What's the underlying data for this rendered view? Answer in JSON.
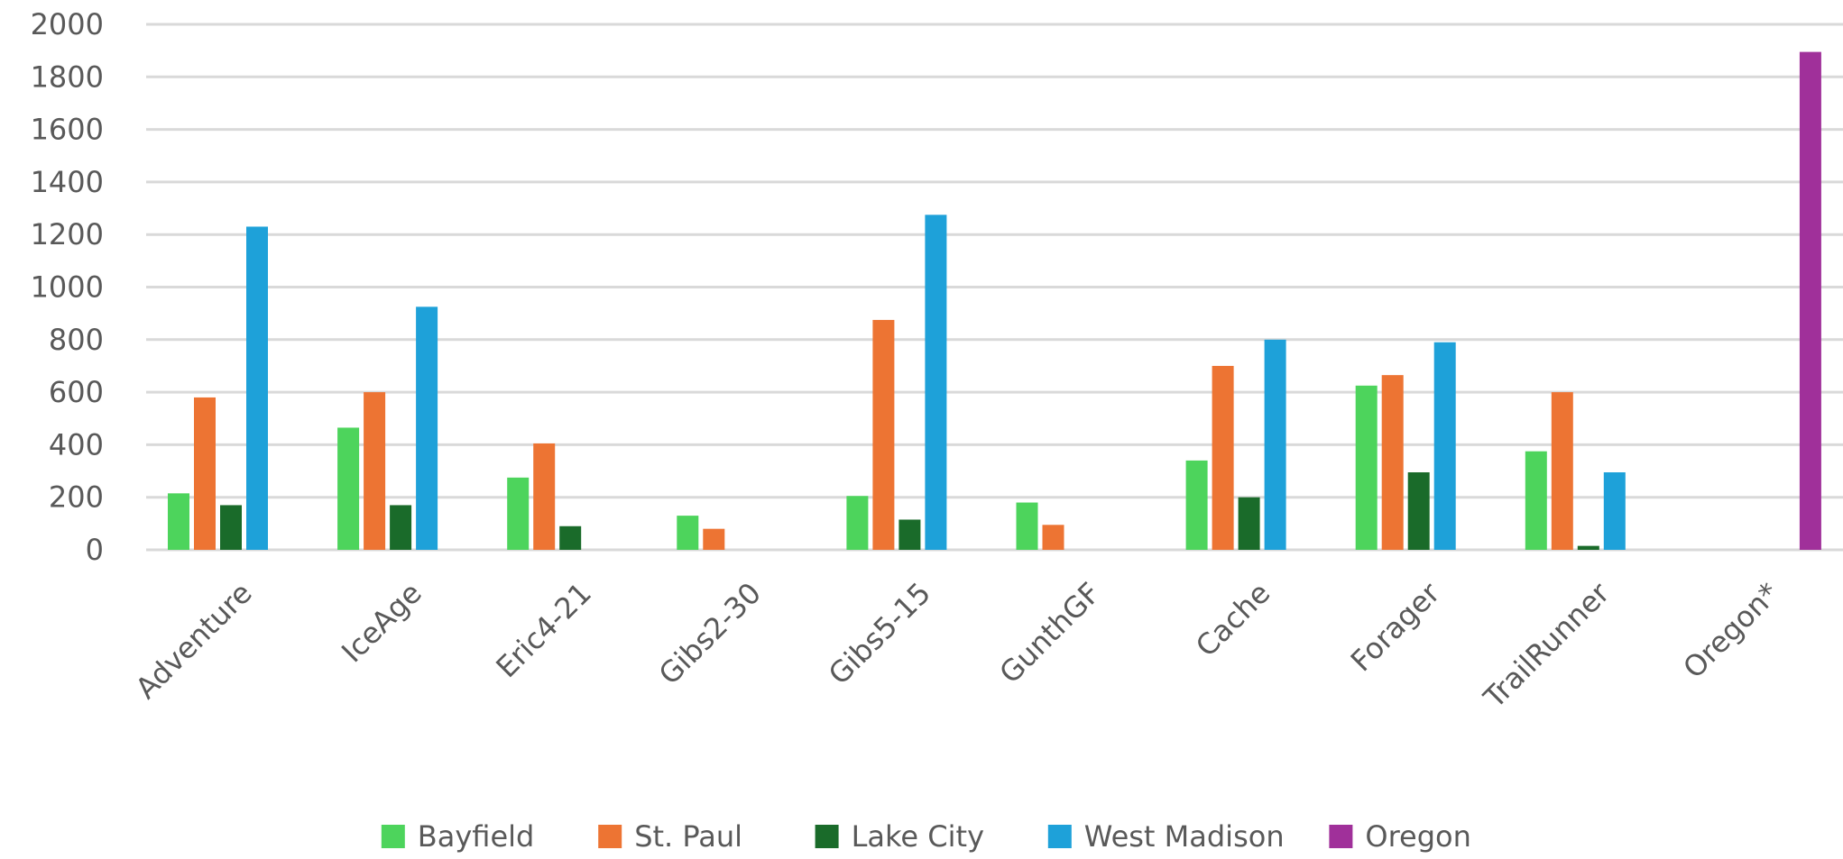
{
  "chart_data": {
    "type": "bar",
    "categories": [
      "Adventure",
      "IceAge",
      "Eric4-21",
      "Gibs2-30",
      "Gibs5-15",
      "GunthGF",
      "Cache",
      "Forager",
      "TrailRunner",
      "Oregon*"
    ],
    "series": [
      {
        "name": "Bayfield",
        "color": "#4dd45c",
        "values": [
          215,
          465,
          275,
          130,
          205,
          180,
          340,
          625,
          375,
          0
        ]
      },
      {
        "name": "St. Paul",
        "color": "#ed7433",
        "values": [
          580,
          600,
          405,
          80,
          875,
          95,
          700,
          665,
          600,
          0
        ]
      },
      {
        "name": "Lake City",
        "color": "#1a6b2a",
        "values": [
          170,
          170,
          90,
          0,
          115,
          0,
          200,
          295,
          15,
          0
        ]
      },
      {
        "name": "West Madison",
        "color": "#1ea1d9",
        "values": [
          1230,
          925,
          0,
          0,
          1275,
          0,
          800,
          790,
          295,
          0
        ]
      },
      {
        "name": "Oregon",
        "color": "#a0309a",
        "values": [
          0,
          0,
          0,
          0,
          0,
          0,
          0,
          0,
          0,
          1895
        ]
      }
    ],
    "yticks": [
      "0",
      "200",
      "400",
      "600",
      "800",
      "1000",
      "1200",
      "1400",
      "1600",
      "1800",
      "2000"
    ],
    "ylim": [
      0,
      2000
    ],
    "grid": true,
    "legend_position": "bottom",
    "title": "",
    "xlabel": "",
    "ylabel": ""
  }
}
